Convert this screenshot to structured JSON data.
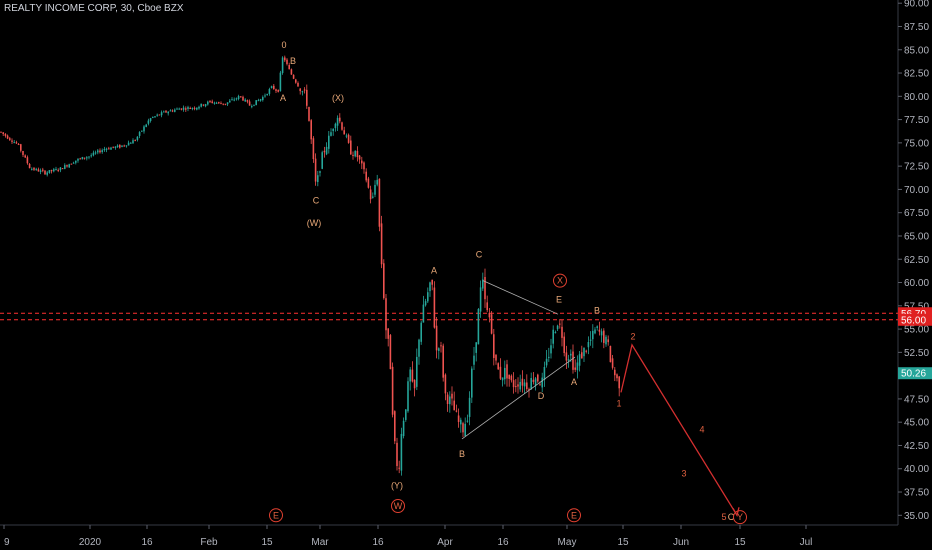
{
  "title": "REALTY INCOME CORP, 30, Cboe BZX",
  "colors": {
    "up": "#26a69a",
    "down": "#ef5350",
    "wave": "#e8a878",
    "proj": "#d32f2f",
    "level": "#ff3030",
    "lastBadge": "#26a69a"
  },
  "chart_data": {
    "type": "candlestick",
    "y_axis": {
      "min": 35,
      "max": 90,
      "ticks": [
        35,
        37.5,
        40,
        42.5,
        45,
        47.5,
        50,
        52.5,
        55,
        57.5,
        60,
        62.5,
        65,
        67.5,
        70,
        72.5,
        75,
        77.5,
        80,
        82.5,
        85,
        87.5,
        90
      ]
    },
    "x_labels": [
      "9",
      "2020",
      "16",
      "Feb",
      "15",
      "Mar",
      "16",
      "Apr",
      "16",
      "May",
      "15",
      "Jun",
      "15",
      "Jul"
    ],
    "last_price": "50.26",
    "levels": [
      {
        "label": "56.70",
        "value": 56.7
      },
      {
        "label": "56.00",
        "value": 56.0
      }
    ],
    "price_path": [
      [
        0,
        76.2
      ],
      [
        18,
        74.8
      ],
      [
        30,
        72.3
      ],
      [
        45,
        71.8
      ],
      [
        60,
        72.2
      ],
      [
        75,
        73.1
      ],
      [
        90,
        73.6
      ],
      [
        105,
        74.4
      ],
      [
        120,
        74.6
      ],
      [
        135,
        75.3
      ],
      [
        150,
        77.6
      ],
      [
        165,
        78.3
      ],
      [
        180,
        78.7
      ],
      [
        195,
        78.8
      ],
      [
        210,
        79.4
      ],
      [
        225,
        79.2
      ],
      [
        240,
        80.0
      ],
      [
        250,
        79.0
      ],
      [
        262,
        79.8
      ],
      [
        272,
        81.0
      ],
      [
        278,
        80.5
      ],
      [
        283,
        84.4
      ],
      [
        290,
        82.6
      ],
      [
        298,
        81.2
      ],
      [
        306,
        80.0
      ],
      [
        310,
        76.5
      ],
      [
        316,
        70.2
      ],
      [
        322,
        73.5
      ],
      [
        330,
        75.8
      ],
      [
        337,
        78.0
      ],
      [
        343,
        76.5
      ],
      [
        350,
        74.2
      ],
      [
        358,
        73.5
      ],
      [
        366,
        71.2
      ],
      [
        372,
        68.5
      ],
      [
        377,
        71.8
      ],
      [
        380,
        64.5
      ],
      [
        383,
        60.0
      ],
      [
        386,
        55.0
      ],
      [
        390,
        52.0
      ],
      [
        394,
        43.5
      ],
      [
        398,
        39.0
      ],
      [
        402,
        44.5
      ],
      [
        406,
        47.0
      ],
      [
        410,
        50.5
      ],
      [
        414,
        47.5
      ],
      [
        418,
        53.5
      ],
      [
        422,
        56.5
      ],
      [
        427,
        58.5
      ],
      [
        432,
        60.0
      ],
      [
        436,
        52.5
      ],
      [
        440,
        54.0
      ],
      [
        445,
        48.0
      ],
      [
        452,
        47.0
      ],
      [
        458,
        45.0
      ],
      [
        463,
        44.3
      ],
      [
        468,
        46.0
      ],
      [
        472,
        50.5
      ],
      [
        476,
        54.0
      ],
      [
        479,
        57.5
      ],
      [
        482,
        60.5
      ],
      [
        486,
        57.0
      ],
      [
        490,
        56.0
      ],
      [
        495,
        51.5
      ],
      [
        500,
        50.0
      ],
      [
        506,
        50.5
      ],
      [
        512,
        49.0
      ],
      [
        520,
        49.5
      ],
      [
        528,
        49.0
      ],
      [
        535,
        50.0
      ],
      [
        542,
        49.2
      ],
      [
        548,
        52.0
      ],
      [
        553,
        54.5
      ],
      [
        558,
        56.0
      ],
      [
        562,
        54.5
      ],
      [
        566,
        52.0
      ],
      [
        570,
        52.5
      ],
      [
        575,
        50.5
      ],
      [
        580,
        52.0
      ],
      [
        586,
        53.0
      ],
      [
        592,
        54.0
      ],
      [
        596,
        55.0
      ],
      [
        600,
        54.5
      ],
      [
        604,
        54.0
      ],
      [
        608,
        53.2
      ],
      [
        612,
        51.0
      ],
      [
        617,
        49.5
      ],
      [
        621,
        49.0
      ]
    ],
    "projection": [
      [
        621,
        48.2
      ],
      [
        632,
        53.3
      ],
      [
        737,
        35.0
      ]
    ],
    "triangle": [
      [
        [
          483,
          60.2
        ],
        [
          558,
          56.6
        ]
      ],
      [
        [
          462,
          43.2
        ],
        [
          575,
          52.0
        ]
      ]
    ],
    "wave_labels": [
      {
        "t": "0",
        "x": 284,
        "v": 85.5
      },
      {
        "t": "B",
        "x": 293,
        "v": 83.8
      },
      {
        "t": "A",
        "x": 283,
        "v": 79.8
      },
      {
        "t": "(X)",
        "x": 338,
        "v": 79.8
      },
      {
        "t": "C",
        "x": 316,
        "v": 68.8
      },
      {
        "t": "(W)",
        "x": 314,
        "v": 66.4
      },
      {
        "t": "A",
        "x": 434,
        "v": 61.3
      },
      {
        "t": "C",
        "x": 479,
        "v": 63.0
      },
      {
        "t": "E",
        "x": 559,
        "v": 58.2
      },
      {
        "t": "B",
        "x": 597,
        "v": 57.0
      },
      {
        "t": "D",
        "x": 541,
        "v": 47.8
      },
      {
        "t": "A",
        "x": 574,
        "v": 49.3
      },
      {
        "t": "B",
        "x": 462,
        "v": 41.6
      },
      {
        "t": "(Y)",
        "x": 397,
        "v": 38.2
      },
      {
        "t": "1",
        "x": 619,
        "v": 47.0
      },
      {
        "t": "2",
        "x": 633,
        "v": 54.2
      },
      {
        "t": "3",
        "x": 684,
        "v": 39.5
      },
      {
        "t": "4",
        "x": 702,
        "v": 44.2
      },
      {
        "t": "5",
        "x": 724,
        "v": 34.8
      },
      {
        "t": "C",
        "x": 731,
        "v": 34.8
      }
    ],
    "circled_labels": [
      {
        "t": "X",
        "x": 560,
        "v": 60.2
      },
      {
        "t": "E",
        "x": 276,
        "v": 35.0
      },
      {
        "t": "W",
        "x": 398,
        "v": 36.0
      },
      {
        "t": "E",
        "x": 574,
        "v": 35.0
      },
      {
        "t": "Y",
        "x": 740,
        "v": 34.8
      }
    ]
  }
}
